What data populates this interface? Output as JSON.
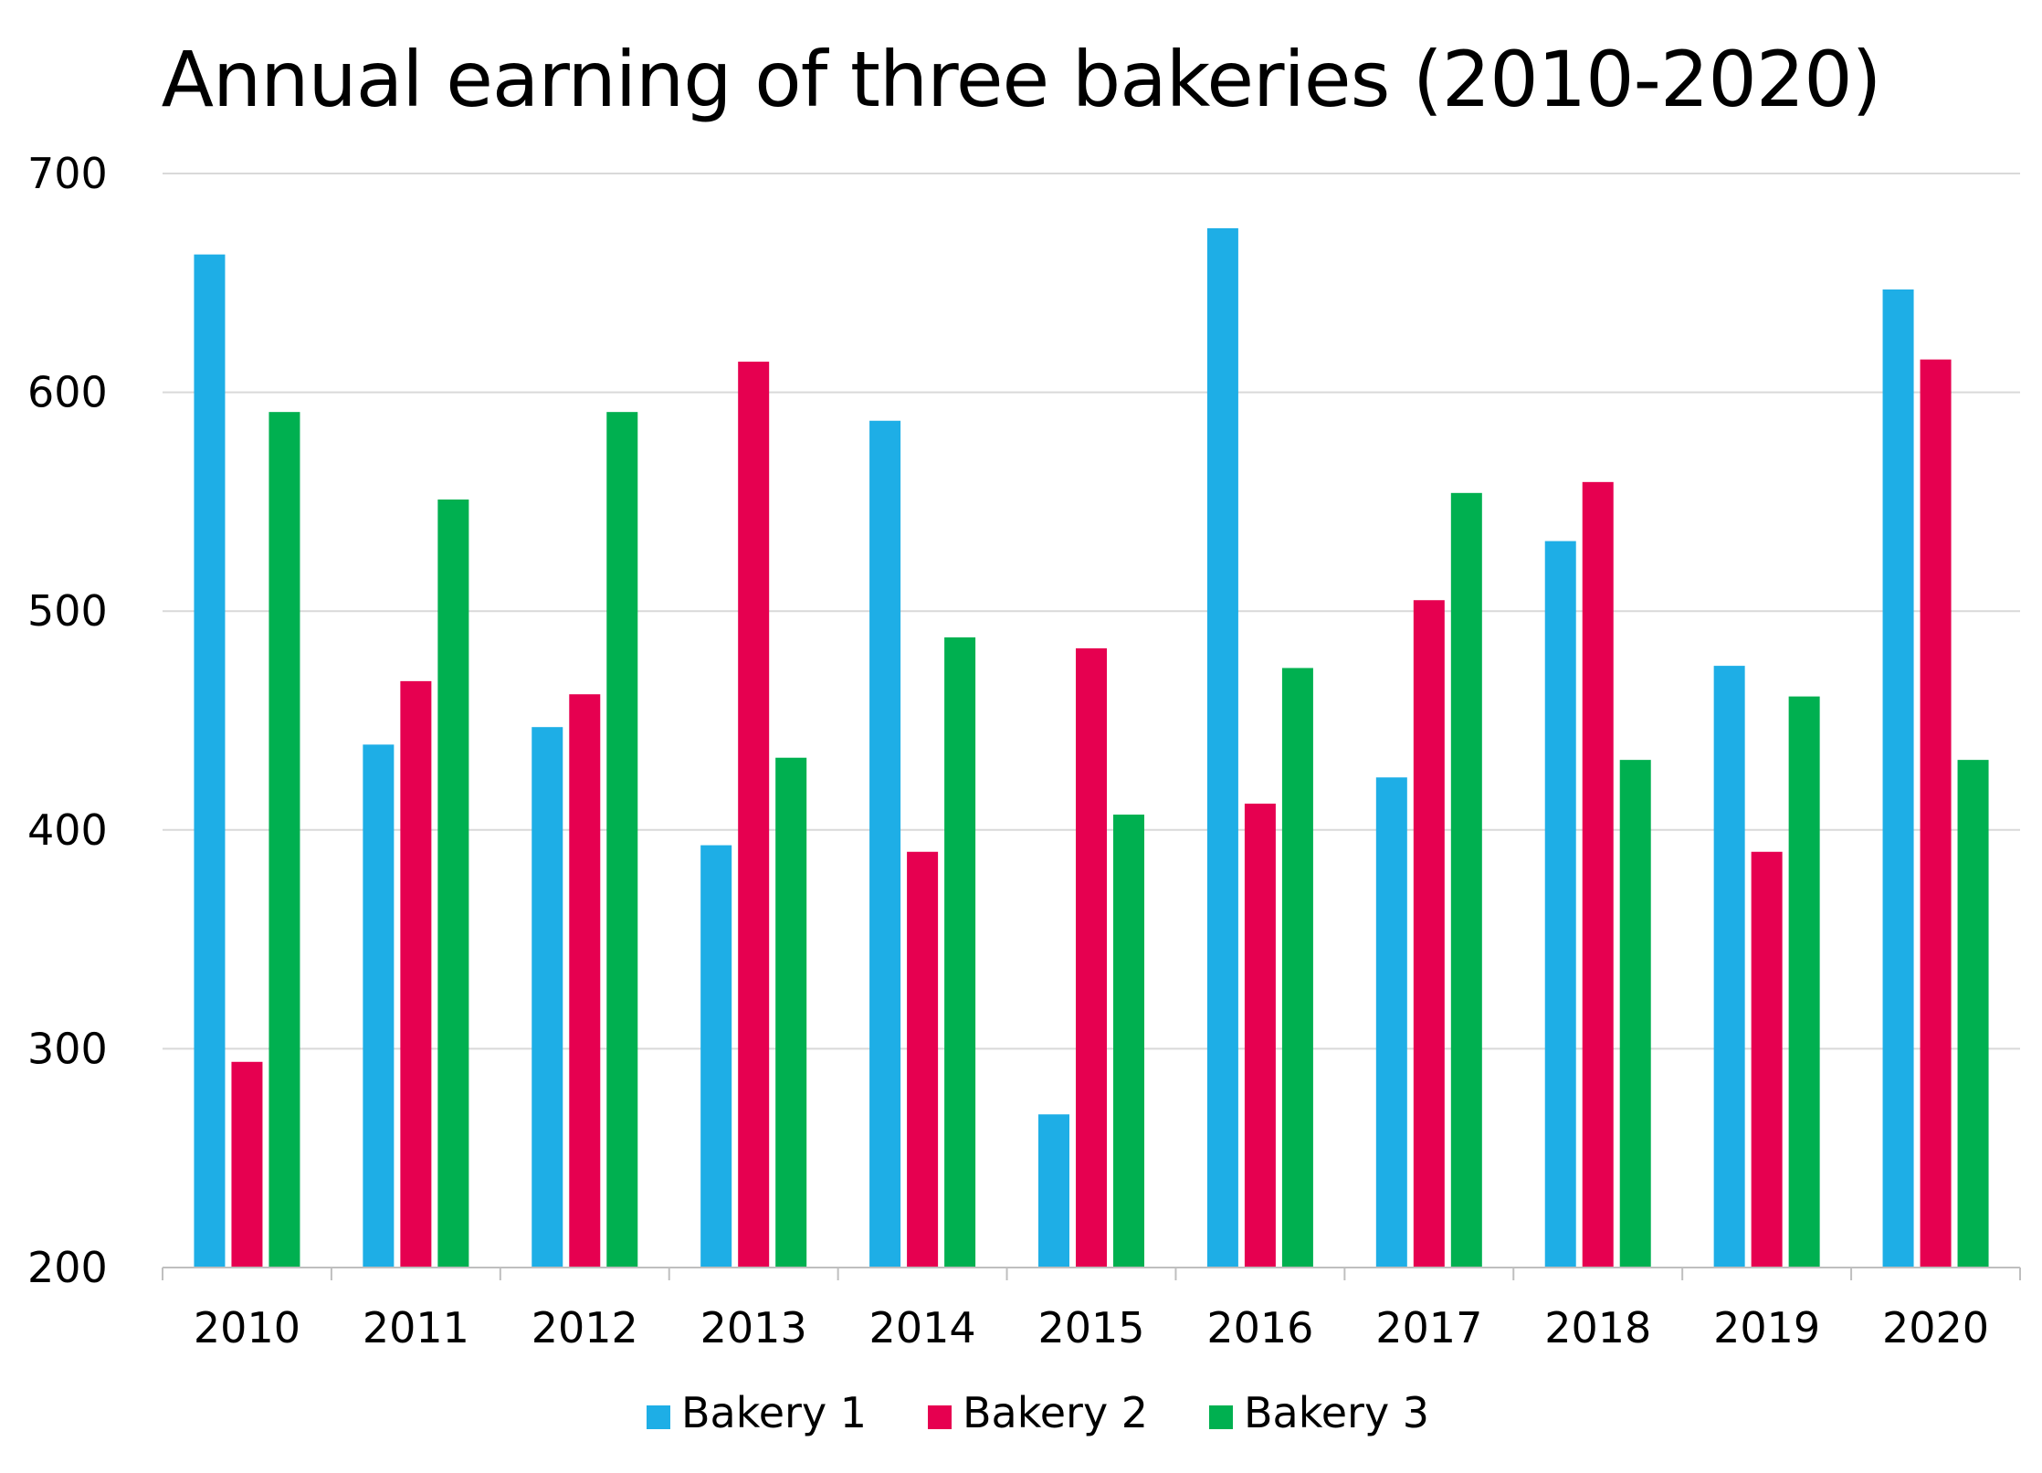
{
  "chart_data": {
    "type": "bar",
    "title": "Annual earning of three bakeries (2010-2020)",
    "xlabel": "",
    "ylabel": "",
    "categories": [
      "2010",
      "2011",
      "2012",
      "2013",
      "2014",
      "2015",
      "2016",
      "2017",
      "2018",
      "2019",
      "2020"
    ],
    "series": [
      {
        "name": "Bakery 1",
        "color": "#1eaee6",
        "values": [
          663,
          439,
          447,
          393,
          587,
          270,
          675,
          424,
          532,
          475,
          647
        ]
      },
      {
        "name": "Bakery 2",
        "color": "#e60050",
        "values": [
          294,
          468,
          462,
          614,
          390,
          483,
          412,
          505,
          559,
          390,
          615
        ]
      },
      {
        "name": "Bakery 3",
        "color": "#00b050",
        "values": [
          591,
          551,
          591,
          433,
          488,
          407,
          474,
          554,
          432,
          461,
          432
        ]
      }
    ],
    "ylim": [
      200,
      700
    ],
    "yticks": [
      200,
      300,
      400,
      500,
      600,
      700
    ],
    "grid": true,
    "legend_position": "bottom"
  }
}
